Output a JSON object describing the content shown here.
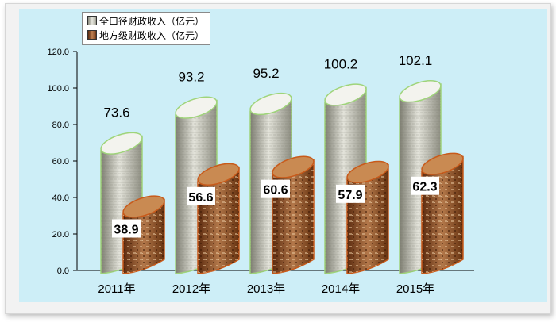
{
  "chart_data": {
    "type": "bar",
    "title": "",
    "xlabel": "",
    "ylabel": "",
    "ylim": [
      0,
      120
    ],
    "yticks": [
      "0.0",
      "20.0",
      "40.0",
      "60.0",
      "80.0",
      "100.0",
      "120.0"
    ],
    "categories": [
      "2011年",
      "2012年",
      "2013年",
      "2014年",
      "2015年"
    ],
    "series": [
      {
        "name": "全口径财政收入（亿元）",
        "values": [
          73.6,
          93.2,
          95.2,
          100.2,
          102.1
        ],
        "labels": [
          "73.6",
          "93.2",
          "95.2",
          "100.2",
          "102.1"
        ],
        "color": "#c9c9bd"
      },
      {
        "name": "地方级财政收入（亿元）",
        "values": [
          38.9,
          56.6,
          60.6,
          57.9,
          62.3
        ],
        "labels": [
          "38.9",
          "56.6",
          "60.6",
          "57.9",
          "62.3"
        ],
        "color": "#8b4a22"
      }
    ],
    "grid": false,
    "legend_position": "top-left",
    "background_color": "#cdeef7"
  }
}
